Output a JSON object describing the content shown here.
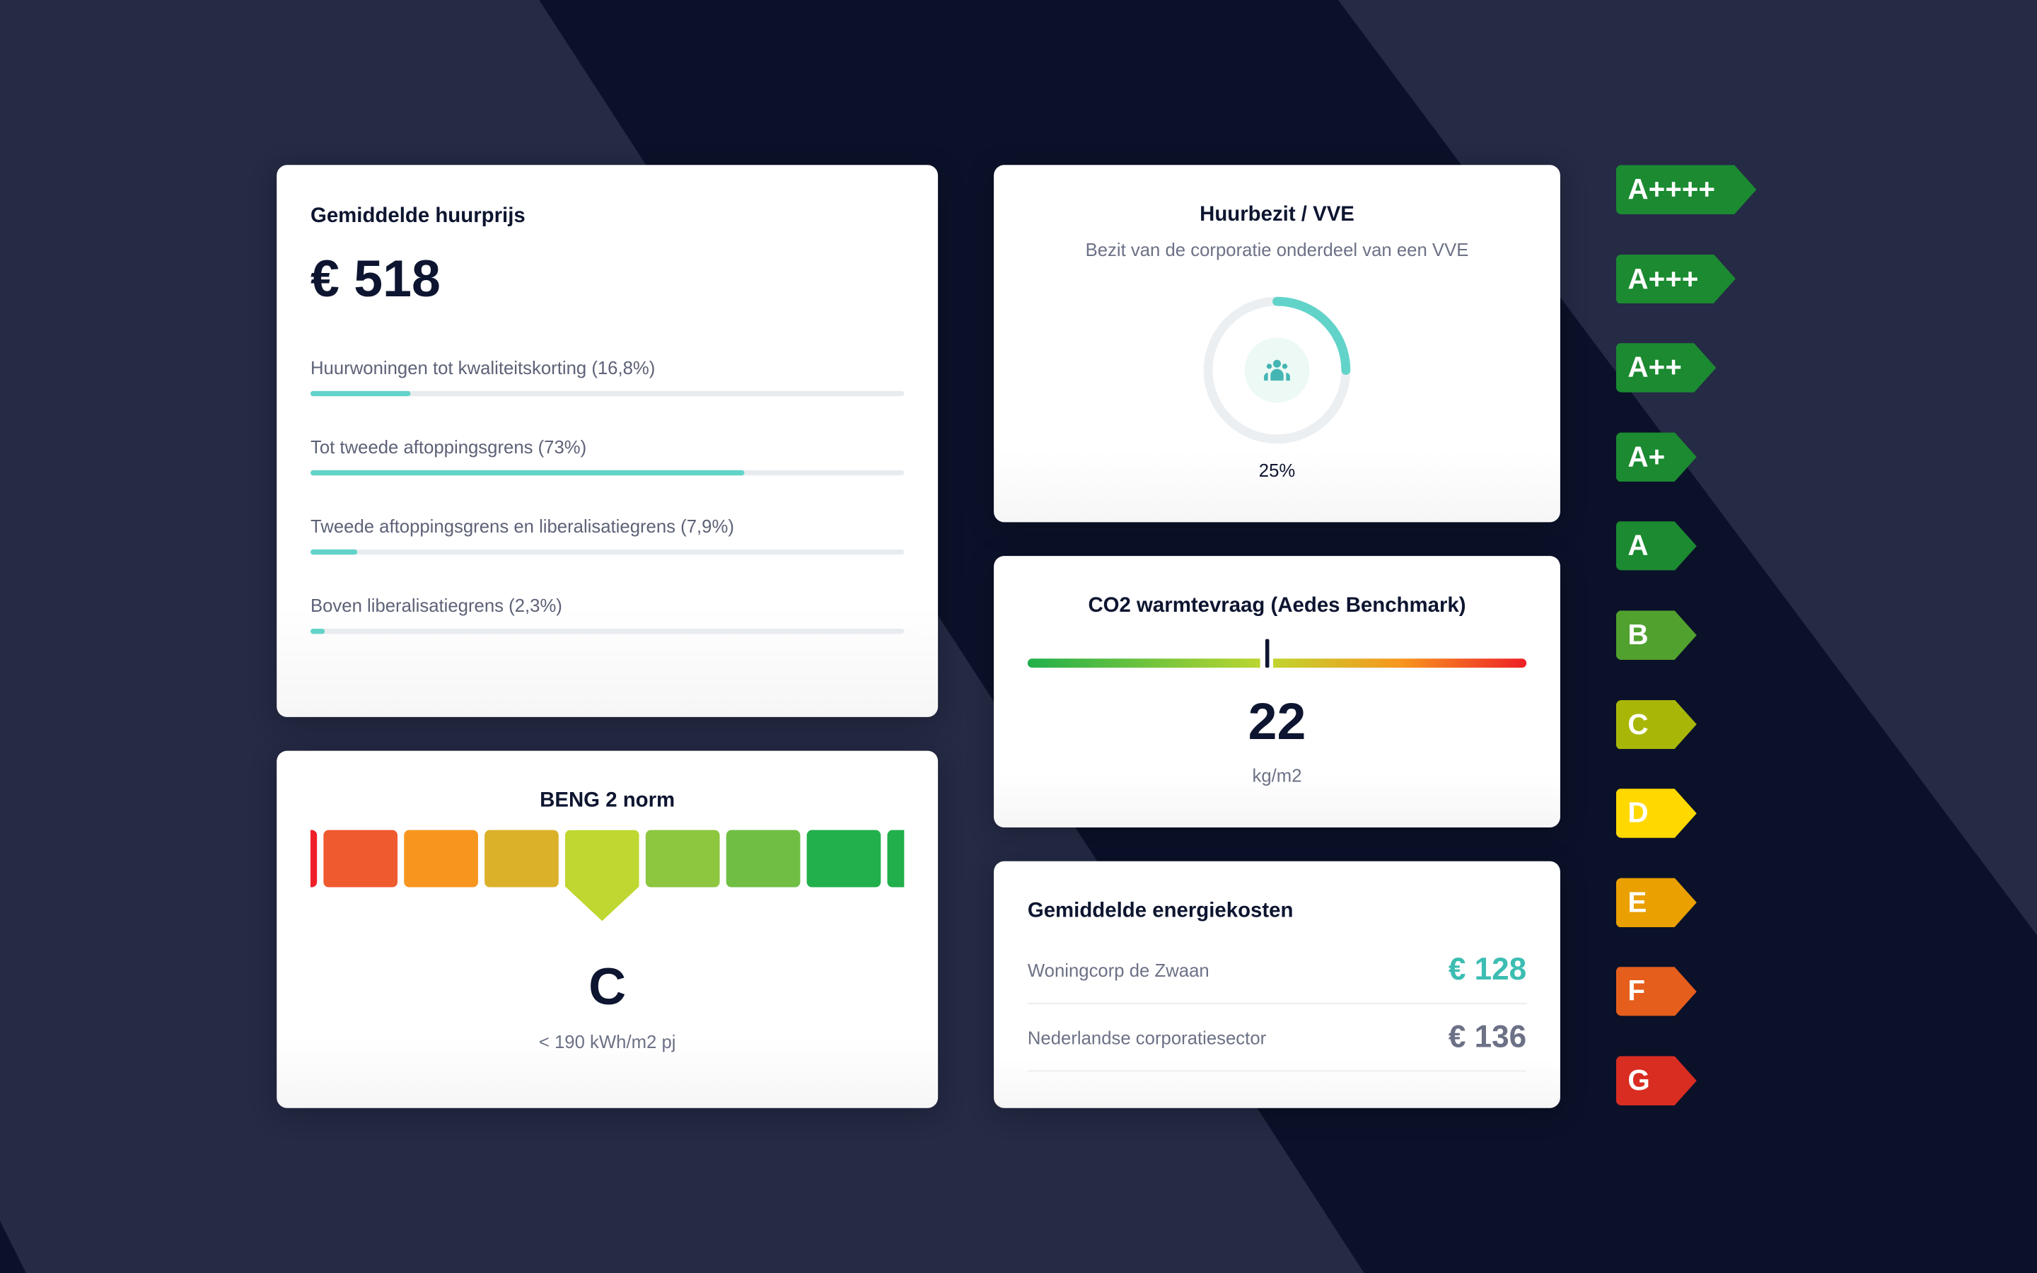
{
  "rent": {
    "title": "Gemiddelde huurprijs",
    "value": "€ 518",
    "rows": [
      {
        "label": "Huurwoningen tot kwaliteitskorting (16,8%)",
        "pct": 16.8
      },
      {
        "label": "Tot tweede aftoppingsgrens (73%)",
        "pct": 73
      },
      {
        "label": "Tweede  aftoppingsgrens en liberalisatiegrens (7,9%)",
        "pct": 7.9
      },
      {
        "label": "Boven liberalisatiegrens (2,3%)",
        "pct": 2.3
      }
    ]
  },
  "vve": {
    "title": "Huurbezit / VVE",
    "subtitle": "Bezit van de corporatie onderdeel van een VVE",
    "pct": 25,
    "pct_label": "25%",
    "icon": "people-icon"
  },
  "co2": {
    "title": "CO2 warmtevraag (Aedes Benchmark)",
    "value": "22",
    "unit": "kg/m2",
    "marker_fraction": 0.48
  },
  "beng": {
    "title": "BENG 2 norm",
    "grade": "C",
    "desc": "< 190 kWh/m2 pj",
    "colors": [
      "#ee1f27",
      "#f05a2f",
      "#f7961f",
      "#dcb12a",
      "#bfd730",
      "#8dc63f",
      "#70bf44",
      "#21b04b",
      "#21b04b"
    ],
    "selected_index": 4
  },
  "energy": {
    "title": "Gemiddelde energiekosten",
    "rows": [
      {
        "label": "Woningcorp de Zwaan",
        "value": "€ 128",
        "color": "#3cbdb2"
      },
      {
        "label": "Nederlandse corporatiesector",
        "value": "€ 136",
        "color": "#6c7186"
      }
    ]
  },
  "labels": [
    {
      "text": "A++++",
      "color": "#1b8a31"
    },
    {
      "text": "A+++",
      "color": "#1b8a31"
    },
    {
      "text": "A++",
      "color": "#1b8a31"
    },
    {
      "text": "A+",
      "color": "#1b8a31"
    },
    {
      "text": "A",
      "color": "#1b8a31"
    },
    {
      "text": "B",
      "color": "#51a12f"
    },
    {
      "text": "C",
      "color": "#a8b707"
    },
    {
      "text": "D",
      "color": "#ffd800"
    },
    {
      "text": "E",
      "color": "#e9a000"
    },
    {
      "text": "F",
      "color": "#e65e1c"
    },
    {
      "text": "G",
      "color": "#d92d21"
    }
  ]
}
